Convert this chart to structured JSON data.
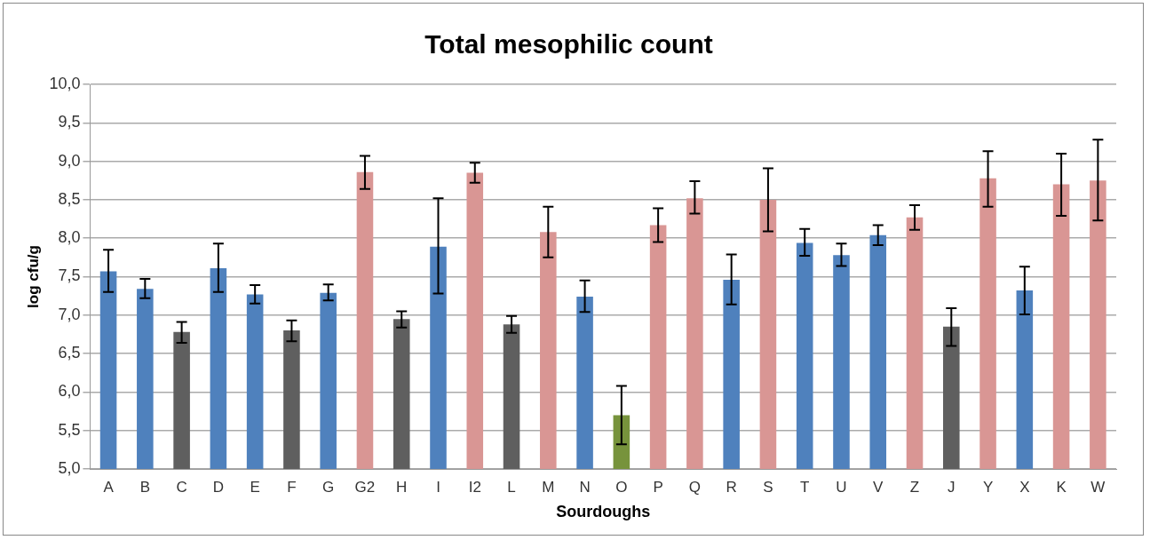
{
  "chart_data": {
    "type": "bar",
    "title": "Total mesophilic count",
    "xlabel": "Sourdoughs",
    "ylabel": "log cfu/g",
    "categories": [
      "A",
      "B",
      "C",
      "D",
      "E",
      "F",
      "G",
      "G2",
      "H",
      "I",
      "I2",
      "L",
      "M",
      "N",
      "O",
      "P",
      "Q",
      "R",
      "S",
      "T",
      "U",
      "V",
      "Z",
      "J",
      "Y",
      "X",
      "K",
      "W"
    ],
    "values": [
      7.57,
      7.34,
      6.78,
      7.61,
      7.27,
      6.8,
      7.29,
      8.86,
      6.95,
      7.89,
      8.85,
      6.88,
      8.08,
      7.24,
      5.7,
      8.17,
      8.52,
      7.46,
      8.5,
      7.94,
      7.78,
      8.04,
      8.27,
      6.85,
      8.78,
      7.32,
      8.7,
      8.75
    ],
    "colors": [
      "#4f81bd",
      "#4f81bd",
      "#5f5f5f",
      "#4f81bd",
      "#4f81bd",
      "#5f5f5f",
      "#4f81bd",
      "#d99694",
      "#5f5f5f",
      "#4f81bd",
      "#d99694",
      "#5f5f5f",
      "#d99694",
      "#4f81bd",
      "#77933c",
      "#d99694",
      "#d99694",
      "#4f81bd",
      "#d99694",
      "#4f81bd",
      "#4f81bd",
      "#4f81bd",
      "#d99694",
      "#5f5f5f",
      "#d99694",
      "#4f81bd",
      "#d99694",
      "#d99694"
    ],
    "errors": [
      [
        7.3,
        7.85
      ],
      [
        7.22,
        7.47
      ],
      [
        6.64,
        6.91
      ],
      [
        7.3,
        7.93
      ],
      [
        7.15,
        7.39
      ],
      [
        6.66,
        6.93
      ],
      [
        7.19,
        7.4
      ],
      [
        8.64,
        9.07
      ],
      [
        6.84,
        7.05
      ],
      [
        7.28,
        8.52
      ],
      [
        8.72,
        8.98
      ],
      [
        6.77,
        6.99
      ],
      [
        7.75,
        8.41
      ],
      [
        7.04,
        7.45
      ],
      [
        5.32,
        6.08
      ],
      [
        7.95,
        8.39
      ],
      [
        8.32,
        8.74
      ],
      [
        7.14,
        7.79
      ],
      [
        8.09,
        8.91
      ],
      [
        7.77,
        8.12
      ],
      [
        7.64,
        7.93
      ],
      [
        7.91,
        8.17
      ],
      [
        8.11,
        8.43
      ],
      [
        6.6,
        7.09
      ],
      [
        8.41,
        9.13
      ],
      [
        7.01,
        7.63
      ],
      [
        8.29,
        9.1
      ],
      [
        8.23,
        9.28
      ]
    ],
    "ylim": [
      5,
      10
    ],
    "yticks": [
      {
        "value": 5,
        "label": "5,0"
      },
      {
        "value": 5.5,
        "label": "5,5"
      },
      {
        "value": 6,
        "label": "6,0"
      },
      {
        "value": 6.5,
        "label": "6,5"
      },
      {
        "value": 7,
        "label": "7,0"
      },
      {
        "value": 7.5,
        "label": "7,5"
      },
      {
        "value": 8,
        "label": "8,0"
      },
      {
        "value": 8.5,
        "label": "8,5"
      },
      {
        "value": 9,
        "label": "9,0"
      },
      {
        "value": 9.5,
        "label": "9,5"
      },
      {
        "value": 10,
        "label": "10,0"
      }
    ],
    "grid": "y",
    "legend": false
  }
}
